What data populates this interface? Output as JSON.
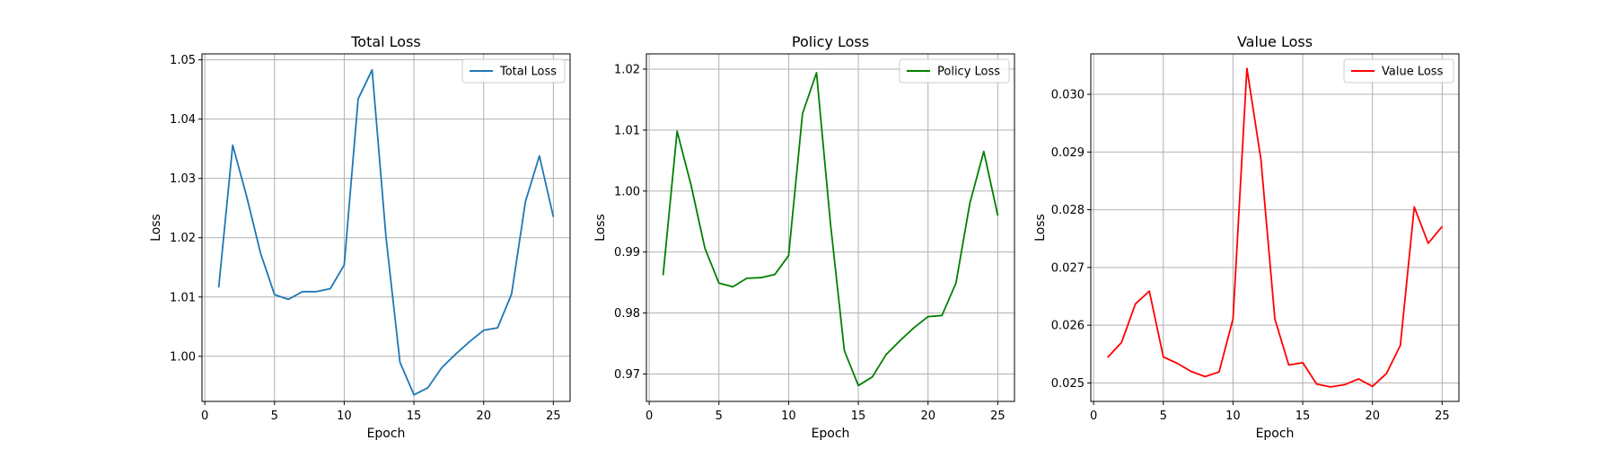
{
  "chart_data": [
    {
      "type": "line",
      "title": "Total Loss",
      "xlabel": "Epoch",
      "ylabel": "Loss",
      "xlim": [
        -0.2,
        26.2
      ],
      "ylim": [
        0.9924,
        1.051
      ],
      "xticks": [
        0,
        5,
        10,
        15,
        20,
        25
      ],
      "yticks": [
        1.0,
        1.01,
        1.02,
        1.03,
        1.04,
        1.05
      ],
      "ytick_labels": [
        "1.00",
        "1.01",
        "1.02",
        "1.03",
        "1.04",
        "1.05"
      ],
      "grid": true,
      "legend": "top-right",
      "series": [
        {
          "name": "Total Loss",
          "color": "#1f77b4",
          "x": [
            1,
            2,
            3,
            4,
            5,
            6,
            7,
            8,
            9,
            10,
            11,
            12,
            13,
            14,
            15,
            16,
            17,
            18,
            19,
            20,
            21,
            22,
            23,
            24,
            25
          ],
          "values": [
            1.0116,
            1.0356,
            1.027,
            1.0174,
            1.0104,
            1.0096,
            1.0109,
            1.0109,
            1.0114,
            1.0154,
            1.0434,
            1.0483,
            1.02,
            0.999,
            0.9935,
            0.9947,
            0.9981,
            1.0004,
            1.0025,
            1.0044,
            1.0048,
            1.0105,
            1.0261,
            1.0338,
            1.0235
          ]
        }
      ]
    },
    {
      "type": "line",
      "title": "Policy Loss",
      "xlabel": "Epoch",
      "ylabel": "Loss",
      "xlim": [
        -0.2,
        26.2
      ],
      "ylim": [
        0.9655,
        1.0225
      ],
      "xticks": [
        0,
        5,
        10,
        15,
        20,
        25
      ],
      "yticks": [
        0.97,
        0.98,
        0.99,
        1.0,
        1.01,
        1.02
      ],
      "ytick_labels": [
        "0.97",
        "0.98",
        "0.99",
        "1.00",
        "1.01",
        "1.02"
      ],
      "grid": true,
      "legend": "top-right",
      "series": [
        {
          "name": "Policy Loss",
          "color": "#008000",
          "x": [
            1,
            2,
            3,
            4,
            5,
            6,
            7,
            8,
            9,
            10,
            11,
            12,
            13,
            14,
            15,
            16,
            17,
            18,
            19,
            20,
            21,
            22,
            23,
            24,
            25
          ],
          "values": [
            0.9862,
            1.0098,
            1.001,
            0.9906,
            0.9849,
            0.9843,
            0.9857,
            0.9858,
            0.9863,
            0.9894,
            1.0127,
            1.0194,
            0.9947,
            0.9738,
            0.9681,
            0.9695,
            0.9732,
            0.9755,
            0.9776,
            0.9794,
            0.9796,
            0.9849,
            0.998,
            1.0065,
            0.996
          ]
        }
      ]
    },
    {
      "type": "line",
      "title": "Value Loss",
      "xlabel": "Epoch",
      "ylabel": "Loss",
      "xlim": [
        -0.2,
        26.2
      ],
      "ylim": [
        0.02468,
        0.0307
      ],
      "xticks": [
        0,
        5,
        10,
        15,
        20,
        25
      ],
      "yticks": [
        0.025,
        0.026,
        0.027,
        0.028,
        0.029,
        0.03
      ],
      "ytick_labels": [
        "0.025",
        "0.026",
        "0.027",
        "0.028",
        "0.029",
        "0.030"
      ],
      "grid": true,
      "legend": "top-right",
      "series": [
        {
          "name": "Value Loss",
          "color": "#ff0000",
          "x": [
            1,
            2,
            3,
            4,
            5,
            6,
            7,
            8,
            9,
            10,
            11,
            12,
            13,
            14,
            15,
            16,
            17,
            18,
            19,
            20,
            21,
            22,
            23,
            24,
            25
          ],
          "values": [
            0.02544,
            0.0257,
            0.02637,
            0.02659,
            0.02545,
            0.02534,
            0.0252,
            0.02511,
            0.02519,
            0.02611,
            0.03045,
            0.02887,
            0.02611,
            0.02531,
            0.02535,
            0.02498,
            0.02493,
            0.02497,
            0.02507,
            0.02494,
            0.02516,
            0.02565,
            0.02805,
            0.02742,
            0.02771
          ]
        }
      ]
    }
  ]
}
